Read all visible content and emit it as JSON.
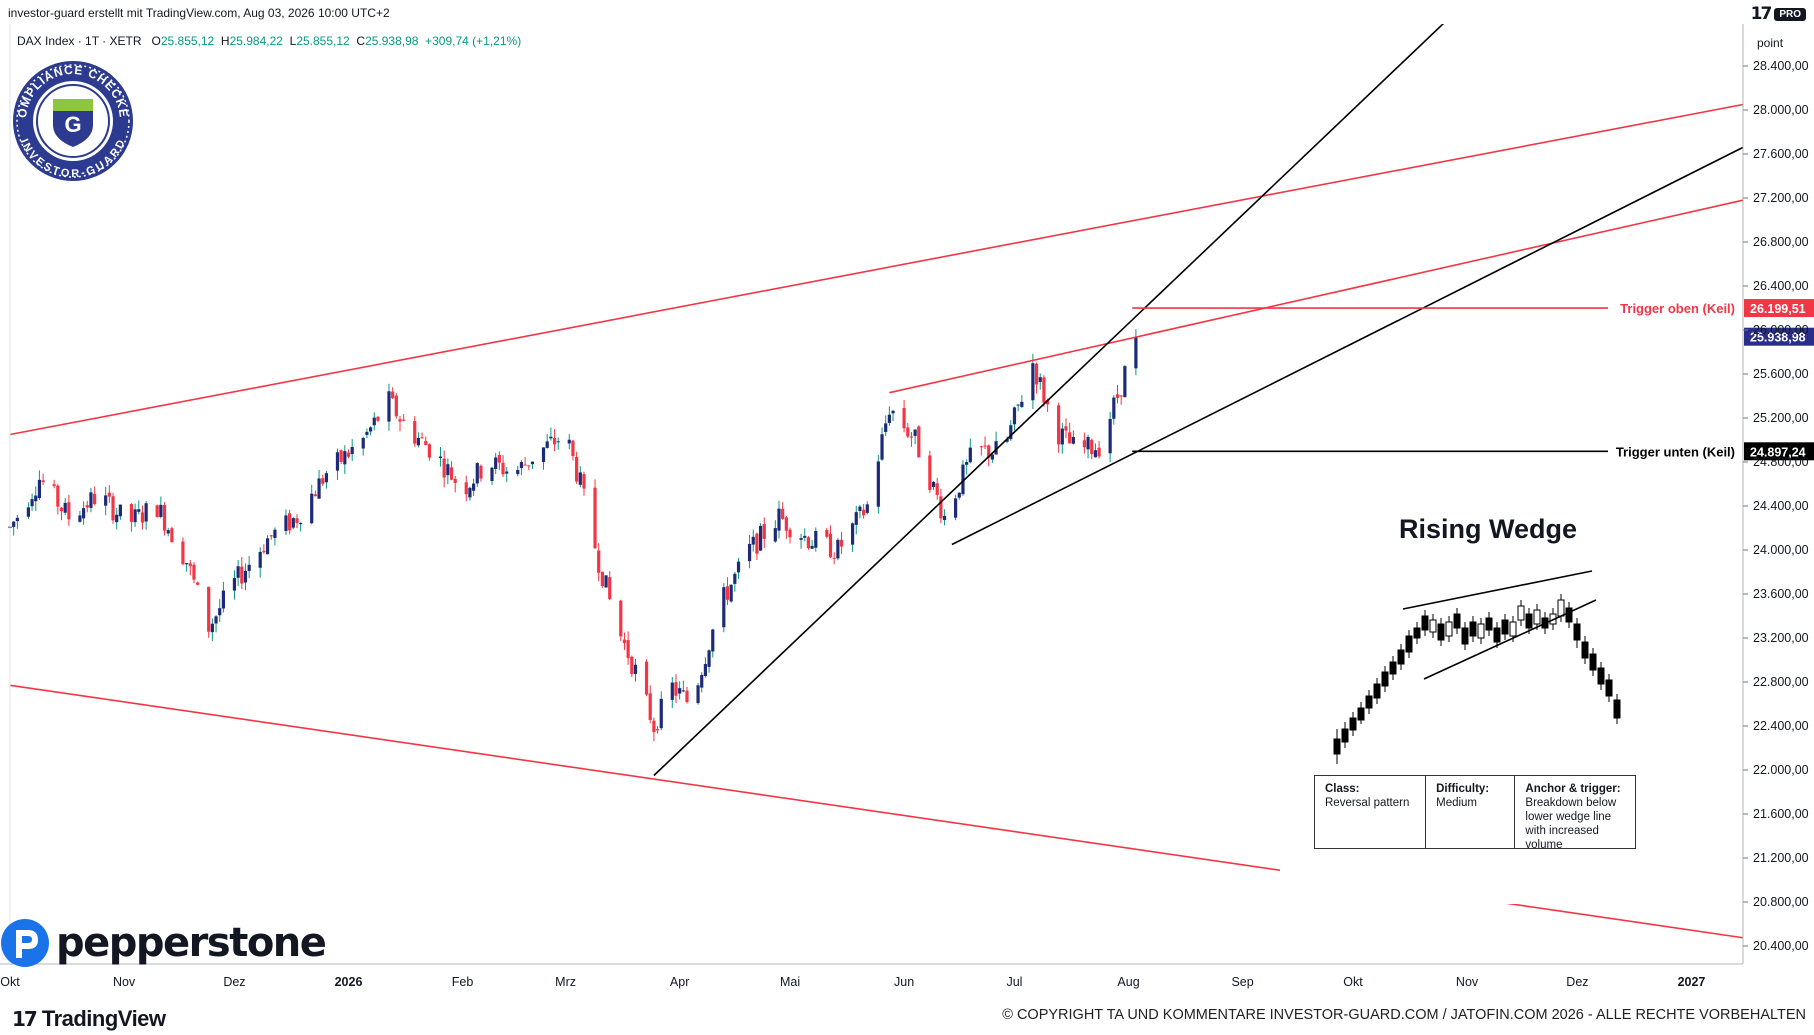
{
  "header": {
    "info": "investor-guard erstellt mit TradingView.com, Aug 03, 2026 10:00 UTC+2",
    "tv_badge": "PRO"
  },
  "symbol": {
    "name": "DAX Index · 1T · XETR",
    "o_label": "O",
    "o": "25.855,12",
    "h_label": "H",
    "h": "25.984,22",
    "l_label": "L",
    "l": "25.855,12",
    "c_label": "C",
    "c": "25.938,98",
    "change": "+309,74 (+1,21%)"
  },
  "seal": {
    "top_text": "COMPLIANCE CHECKED",
    "bottom_text": "INVESTOR-GUARD",
    "letter": "G"
  },
  "branding": {
    "pepperstone": "pepperstone",
    "tradingview": "TradingView"
  },
  "copyright": "© COPYRIGHT TA UND KOMMENTARE INVESTOR-GUARD.COM / JATOFIN.COM 2026 - ALLE RECHTE VORBEHALTEN",
  "colors": {
    "up": "#089981",
    "down": "#f23645",
    "red_line": "#f23645",
    "black_line": "#000000",
    "last_price": "#2a2e88",
    "up_candle_body": "#1e2a78",
    "down_candle_body": "#f23645"
  },
  "chart_data": {
    "type": "candlestick",
    "ylim": [
      20200,
      29000
    ],
    "y_unit_label": "point",
    "y_ticks": [
      20400,
      20800,
      21200,
      21600,
      22000,
      22400,
      22800,
      23200,
      23600,
      24000,
      24400,
      24800,
      25200,
      25600,
      26000,
      26400,
      26800,
      27200,
      27600,
      28000,
      28400
    ],
    "y_tick_labels": [
      "20.400,00",
      "20.800,00",
      "21.200,00",
      "21.600,00",
      "22.000,00",
      "22.400,00",
      "22.800,00",
      "23.200,00",
      "23.600,00",
      "24.000,00",
      "24.400,00",
      "24.800,00",
      "25.200,00",
      "25.600,00",
      "26.000,00",
      "26.400,00",
      "26.800,00",
      "27.200,00",
      "27.600,00",
      "28.000,00",
      "28.400,00"
    ],
    "x_start": "2025-10-01",
    "x_end": "2027-01-15",
    "x_ticks": [
      {
        "date": "2025-10-01",
        "label": "Okt"
      },
      {
        "date": "2025-11-01",
        "label": "Nov"
      },
      {
        "date": "2025-12-01",
        "label": "Dez"
      },
      {
        "date": "2026-01-01",
        "label": "2026"
      },
      {
        "date": "2026-02-01",
        "label": "Feb"
      },
      {
        "date": "2026-03-01",
        "label": "Mrz"
      },
      {
        "date": "2026-04-01",
        "label": "Apr"
      },
      {
        "date": "2026-05-01",
        "label": "Mai"
      },
      {
        "date": "2026-06-01",
        "label": "Jun"
      },
      {
        "date": "2026-07-01",
        "label": "Jul"
      },
      {
        "date": "2026-08-01",
        "label": "Aug"
      },
      {
        "date": "2026-09-01",
        "label": "Sep"
      },
      {
        "date": "2026-10-01",
        "label": "Okt"
      },
      {
        "date": "2026-11-01",
        "label": "Nov"
      },
      {
        "date": "2026-12-01",
        "label": "Dez"
      },
      {
        "date": "2027-01-01",
        "label": "2027"
      }
    ],
    "trend_path": [
      [
        "2025-10-01",
        24200
      ],
      [
        "2025-10-09",
        24650
      ],
      [
        "2025-10-17",
        24300
      ],
      [
        "2025-10-25",
        24500
      ],
      [
        "2025-11-02",
        24250
      ],
      [
        "2025-11-10",
        24400
      ],
      [
        "2025-11-18",
        23900
      ],
      [
        "2025-11-24",
        23300
      ],
      [
        "2025-12-01",
        23700
      ],
      [
        "2025-12-10",
        24100
      ],
      [
        "2025-12-18",
        24300
      ],
      [
        "2025-12-26",
        24700
      ],
      [
        "2026-01-05",
        25000
      ],
      [
        "2026-01-12",
        25350
      ],
      [
        "2026-01-17",
        25100
      ],
      [
        "2026-01-24",
        24900
      ],
      [
        "2026-02-01",
        24550
      ],
      [
        "2026-02-08",
        24800
      ],
      [
        "2026-02-15",
        24700
      ],
      [
        "2026-02-22",
        24900
      ],
      [
        "2026-03-01",
        25050
      ],
      [
        "2026-03-05",
        24600
      ],
      [
        "2026-03-10",
        23900
      ],
      [
        "2026-03-15",
        23300
      ],
      [
        "2026-03-20",
        22900
      ],
      [
        "2026-03-25",
        22400
      ],
      [
        "2026-03-30",
        22750
      ],
      [
        "2026-04-04",
        22600
      ],
      [
        "2026-04-12",
        23500
      ],
      [
        "2026-04-20",
        24000
      ],
      [
        "2026-04-28",
        24300
      ],
      [
        "2026-05-06",
        24100
      ],
      [
        "2026-05-14",
        24000
      ],
      [
        "2026-05-22",
        24400
      ],
      [
        "2026-05-28",
        25300
      ],
      [
        "2026-06-04",
        25000
      ],
      [
        "2026-06-12",
        24300
      ],
      [
        "2026-06-20",
        24900
      ],
      [
        "2026-06-28",
        24900
      ],
      [
        "2026-07-06",
        25700
      ],
      [
        "2026-07-12",
        25100
      ],
      [
        "2026-07-18",
        24900
      ],
      [
        "2026-07-24",
        24950
      ],
      [
        "2026-07-29",
        25400
      ],
      [
        "2026-08-03",
        25939
      ]
    ],
    "trend_lines": [
      {
        "color": "red",
        "from": [
          "2025-10-01",
          25050
        ],
        "to": [
          "2027-01-15",
          28050
        ]
      },
      {
        "color": "red",
        "from": [
          "2025-10-01",
          22770
        ],
        "to": [
          "2027-01-15",
          20475
        ]
      },
      {
        "color": "red",
        "from": [
          "2026-05-28",
          25430
        ],
        "to": [
          "2027-01-15",
          27180
        ]
      },
      {
        "color": "black",
        "from": [
          "2026-03-25",
          21950
        ],
        "to": [
          "2026-11-06",
          29150
        ]
      },
      {
        "color": "black",
        "from": [
          "2026-06-14",
          24050
        ],
        "to": [
          "2027-01-15",
          27660
        ]
      }
    ],
    "trigger_lines": [
      {
        "label": "Trigger oben (Keil)",
        "value": 26199.51,
        "price_label": "26.199,51",
        "from_date": "2026-08-02",
        "color": "red"
      },
      {
        "label": "Trigger unten (Keil)",
        "value": 24897.24,
        "price_label": "24.897,24",
        "from_date": "2026-08-02",
        "color": "black"
      }
    ],
    "last_price": {
      "value": 25938.98,
      "label": "25.938,98"
    },
    "inset": {
      "title": "Rising Wedge",
      "cells": [
        {
          "heading": "Class:",
          "lines": [
            "Reversal pattern"
          ]
        },
        {
          "heading": "Difficulty:",
          "lines": [
            "Medium"
          ]
        },
        {
          "heading": "Anchor & trigger:",
          "lines": [
            "Breakdown below",
            "lower wedge line",
            "with increased volume"
          ]
        }
      ]
    }
  }
}
